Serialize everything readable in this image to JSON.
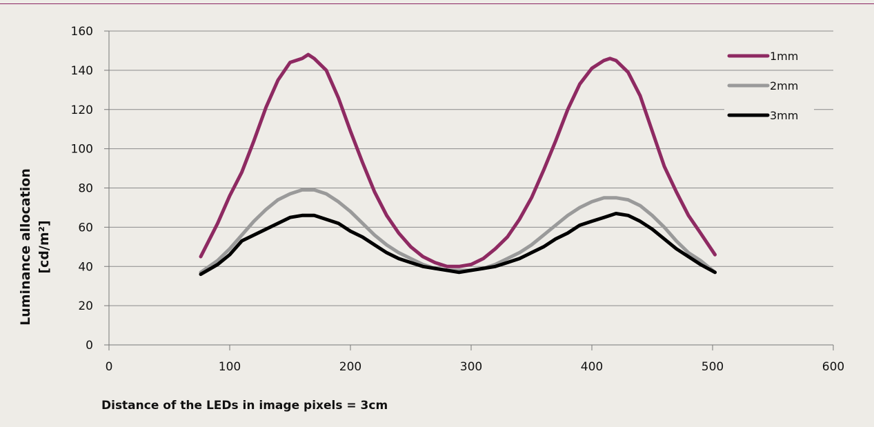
{
  "chart_data": {
    "type": "line",
    "title": "",
    "xlabel": "Distance of the LEDs in image pixels = 3cm",
    "ylabel": [
      "Luminance allocation",
      "[cd/m²]"
    ],
    "xlim": [
      0,
      600
    ],
    "ylim": [
      0,
      160
    ],
    "xticks": [
      0,
      100,
      200,
      300,
      400,
      500,
      600
    ],
    "yticks": [
      0,
      20,
      40,
      60,
      80,
      100,
      120,
      140,
      160
    ],
    "grid": "horizontal",
    "legend_position": "top-right",
    "colors": {
      "1mm": "#8e2a62",
      "2mm": "#9a9a9a",
      "3mm": "#000000"
    },
    "series": [
      {
        "name": "1mm",
        "x": [
          76,
          90,
          100,
          110,
          120,
          130,
          140,
          150,
          160,
          165,
          170,
          180,
          190,
          200,
          210,
          220,
          230,
          240,
          250,
          260,
          270,
          280,
          290,
          300,
          310,
          320,
          330,
          340,
          350,
          360,
          370,
          380,
          390,
          400,
          410,
          415,
          420,
          430,
          440,
          450,
          460,
          470,
          480,
          490,
          502
        ],
        "y": [
          45,
          62,
          76,
          88,
          104,
          121,
          135,
          144,
          146,
          148,
          146,
          140,
          126,
          109,
          93,
          78,
          66,
          57,
          50,
          45,
          42,
          40,
          40,
          41,
          44,
          49,
          55,
          64,
          75,
          89,
          104,
          120,
          133,
          141,
          145,
          146,
          145,
          139,
          127,
          109,
          91,
          78,
          66,
          57,
          46
        ]
      },
      {
        "name": "2mm",
        "x": [
          76,
          90,
          100,
          110,
          120,
          130,
          140,
          150,
          160,
          170,
          180,
          190,
          200,
          210,
          220,
          230,
          240,
          250,
          260,
          270,
          280,
          290,
          300,
          310,
          320,
          330,
          340,
          350,
          360,
          370,
          380,
          390,
          400,
          410,
          420,
          430,
          440,
          450,
          460,
          470,
          480,
          490,
          502
        ],
        "y": [
          37,
          43,
          49,
          56,
          63,
          69,
          74,
          77,
          79,
          79,
          77,
          73,
          68,
          62,
          56,
          51,
          47,
          44,
          41,
          39,
          38,
          38,
          38,
          39,
          41,
          44,
          47,
          51,
          56,
          61,
          66,
          70,
          73,
          75,
          75,
          74,
          71,
          66,
          60,
          53,
          47,
          43,
          37
        ]
      },
      {
        "name": "3mm",
        "x": [
          76,
          90,
          100,
          110,
          120,
          130,
          140,
          150,
          160,
          170,
          180,
          190,
          200,
          210,
          220,
          230,
          240,
          250,
          260,
          270,
          280,
          290,
          300,
          310,
          320,
          330,
          340,
          350,
          360,
          370,
          380,
          390,
          400,
          410,
          420,
          430,
          440,
          450,
          460,
          470,
          480,
          490,
          502
        ],
        "y": [
          36,
          41,
          46,
          53,
          56,
          59,
          62,
          65,
          66,
          66,
          64,
          62,
          58,
          55,
          51,
          47,
          44,
          42,
          40,
          39,
          38,
          37,
          38,
          39,
          40,
          42,
          44,
          47,
          50,
          54,
          57,
          61,
          63,
          65,
          67,
          66,
          63,
          59,
          54,
          49,
          45,
          41,
          37
        ]
      }
    ]
  }
}
